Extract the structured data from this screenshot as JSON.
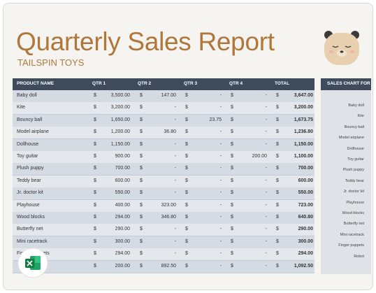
{
  "header": {
    "title": "Quarterly Sales Report",
    "subtitle": "TAILSPIN TOYS"
  },
  "table": {
    "columns": [
      "PRODUCT NAME",
      "QTR 1",
      "QTR 2",
      "QTR 3",
      "QTR 4",
      "TOTAL"
    ],
    "currency": "$",
    "rows": [
      [
        "Baby doll",
        "3,500.00",
        "147.00",
        "-",
        "-",
        "3,647.00"
      ],
      [
        "Kite",
        "3,200.00",
        "-",
        "-",
        "-",
        "3,200.00"
      ],
      [
        "Bouncy ball",
        "1,650.00",
        "-",
        "23.75",
        "-",
        "1,673.75"
      ],
      [
        "Model airplane",
        "1,200.00",
        "36.80",
        "-",
        "-",
        "1,236.80"
      ],
      [
        "Dollhouse",
        "1,150.00",
        "-",
        "-",
        "-",
        "1,150.00"
      ],
      [
        "Toy guitar",
        "900.00",
        "-",
        "-",
        "200.00",
        "1,100.00"
      ],
      [
        "Plush puppy",
        "700.00",
        "-",
        "-",
        "-",
        "700.00"
      ],
      [
        "Teddy bear",
        "600.00",
        "-",
        "-",
        "-",
        "600.00"
      ],
      [
        "Jr. doctor kit",
        "550.00",
        "-",
        "-",
        "-",
        "550.00"
      ],
      [
        "Playhouse",
        "400.00",
        "323.00",
        "-",
        "-",
        "723.00"
      ],
      [
        "Wood blocks",
        "294.00",
        "346.80",
        "-",
        "-",
        "640.80"
      ],
      [
        "Butterfly net",
        "290.00",
        "-",
        "-",
        "-",
        "290.00"
      ],
      [
        "Mini racetrack",
        "300.00",
        "-",
        "-",
        "-",
        "300.00"
      ],
      [
        "Finger puppets",
        "294.00",
        "-",
        "-",
        "-",
        "294.00"
      ],
      [
        null,
        "200.00",
        "892.50",
        "-",
        "-",
        "1,092.50"
      ]
    ]
  },
  "chart": {
    "title": "SALES CHART FOR",
    "labels": [
      "Baby doll",
      "Kite",
      "Bouncy ball",
      "Model airplane",
      "Dollhouse",
      "Toy guitar",
      "Plush puppy",
      "Teddy bear",
      "Jr. doctor kit",
      "Playhouse",
      "Wood blocks",
      "Butterfly net",
      "Mini racetrack",
      "Finger puppets",
      "Robot"
    ]
  }
}
